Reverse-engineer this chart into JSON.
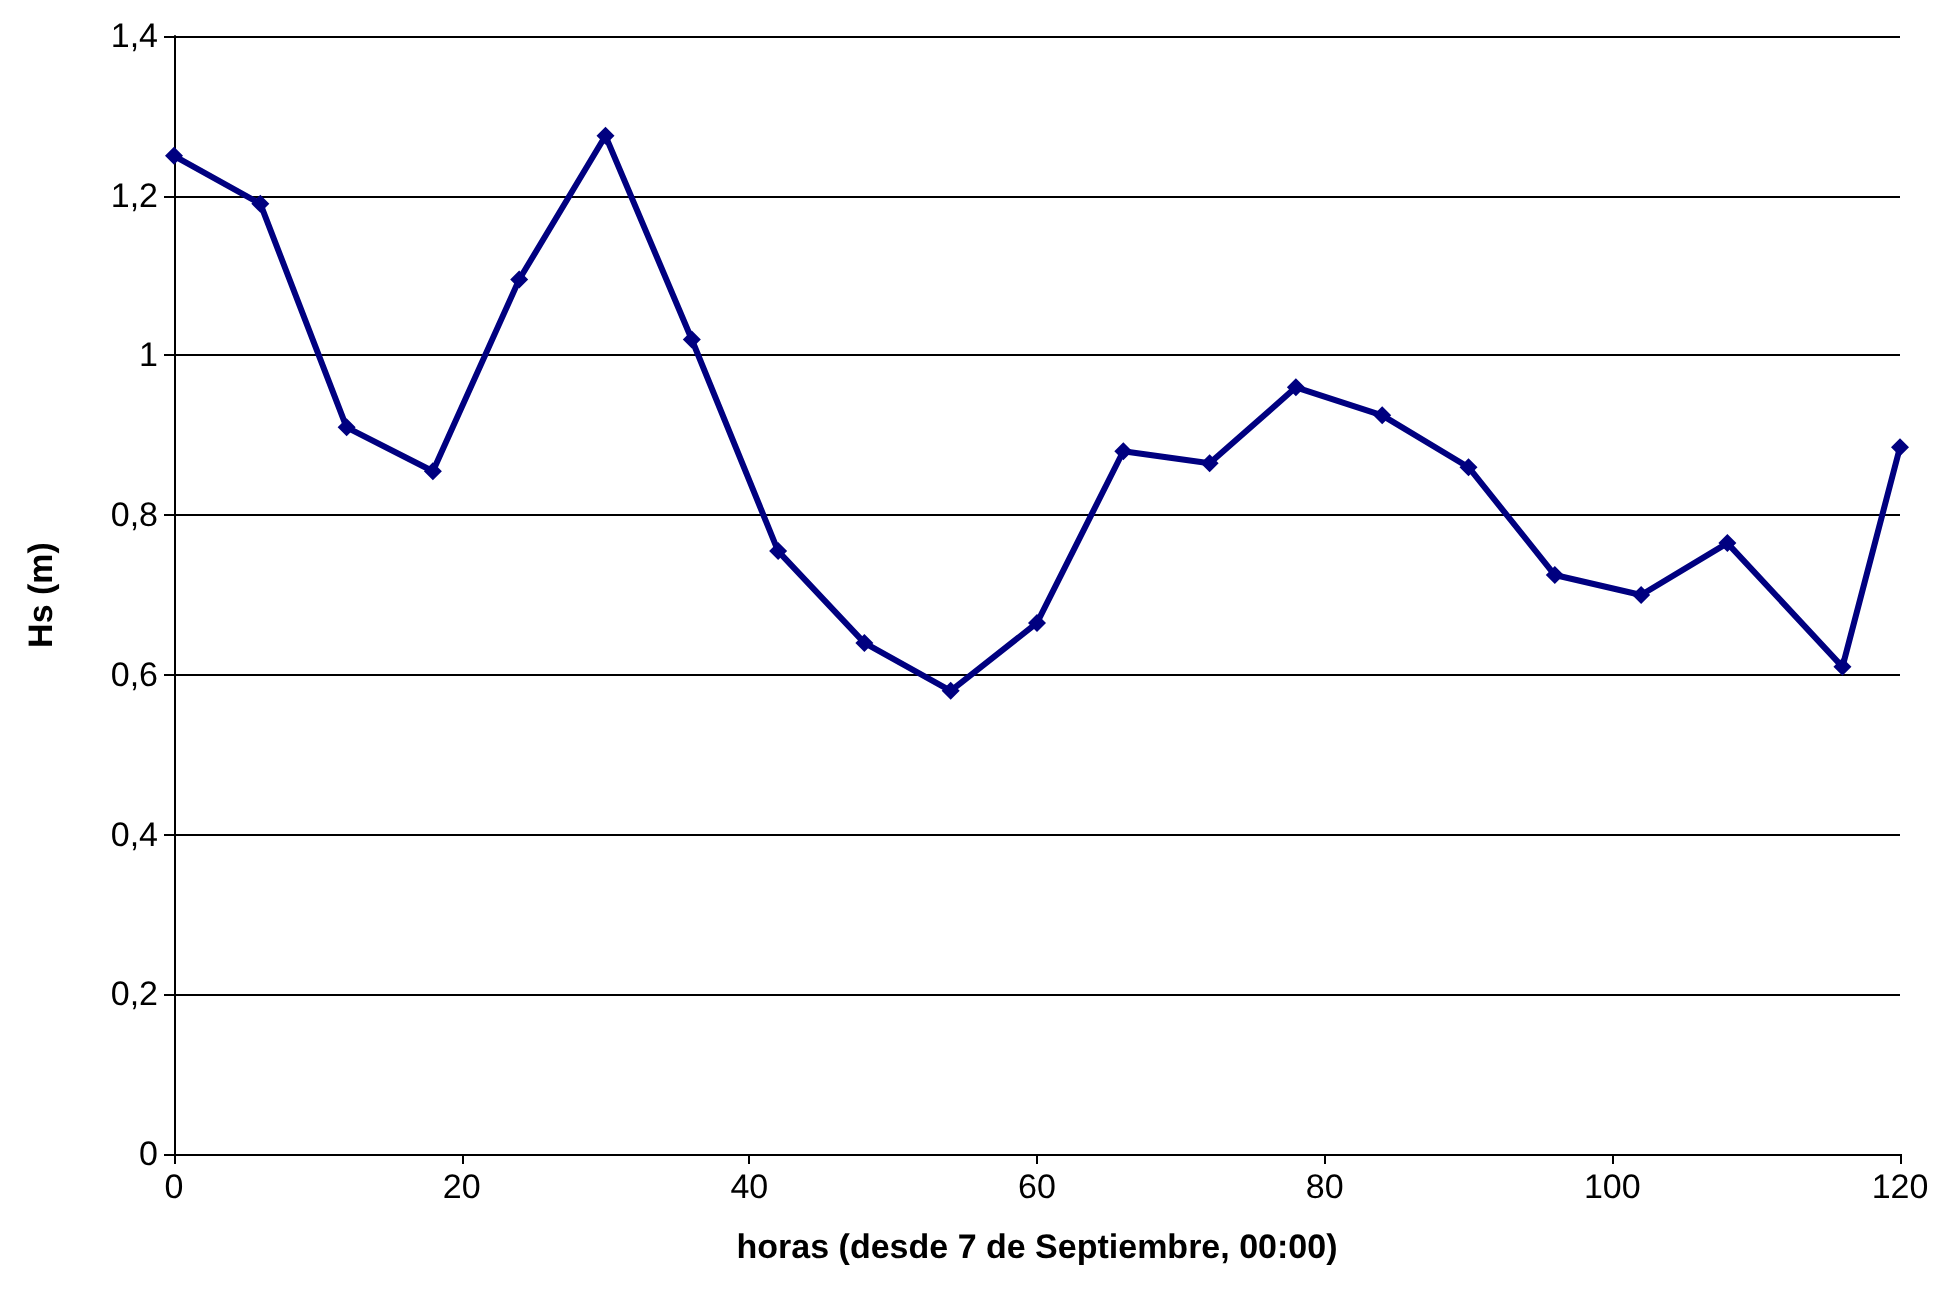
{
  "chart_data": {
    "type": "line",
    "xlabel": "horas (desde 7 de Septiembre, 00:00)",
    "ylabel": "Hs (m)",
    "x": [
      0,
      6,
      12,
      18,
      24,
      30,
      36,
      42,
      48,
      54,
      60,
      66,
      72,
      78,
      84,
      90,
      96,
      102,
      108,
      116,
      120
    ],
    "series": [
      {
        "color": "#000080",
        "values": [
          1.25,
          1.19,
          0.91,
          0.855,
          1.095,
          1.275,
          1.02,
          0.755,
          0.64,
          0.58,
          0.665,
          0.88,
          0.865,
          0.96,
          0.925,
          0.86,
          0.725,
          0.7,
          0.765,
          0.61,
          0.885
        ]
      }
    ],
    "xlim": [
      0,
      120
    ],
    "xticks": [
      0,
      20,
      40,
      60,
      80,
      100,
      120
    ],
    "ylim": [
      0,
      1.4
    ],
    "yticks": [
      {
        "value": 0,
        "label": "0"
      },
      {
        "value": 0.2,
        "label": "0,2"
      },
      {
        "value": 0.4,
        "label": "0,4"
      },
      {
        "value": 0.6,
        "label": "0,6"
      },
      {
        "value": 0.8,
        "label": "0,8"
      },
      {
        "value": 1,
        "label": "1"
      },
      {
        "value": 1.2,
        "label": "1,2"
      },
      {
        "value": 1.4,
        "label": "1,4"
      }
    ],
    "grid": "y",
    "marker": "diamond",
    "line_style": "solid"
  }
}
